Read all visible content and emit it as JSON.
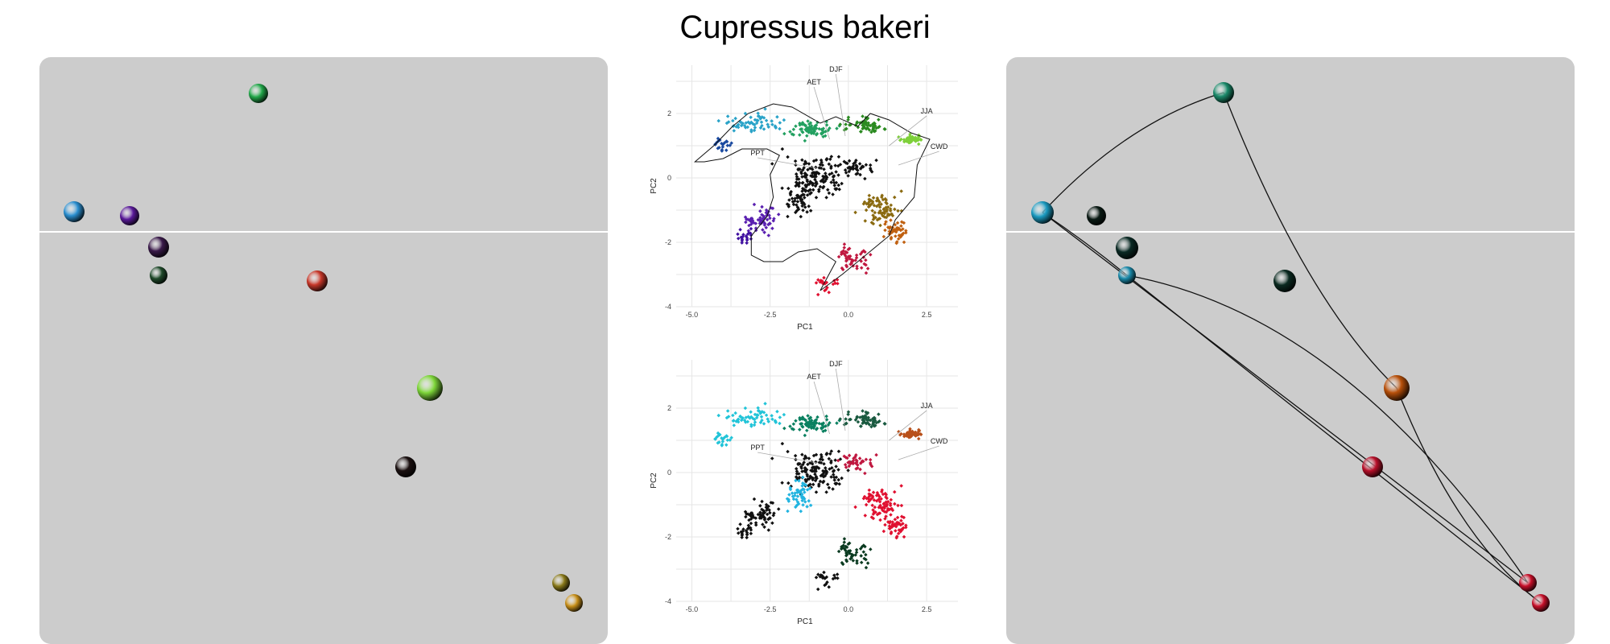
{
  "page": {
    "title": "Cupressus bakeri"
  },
  "chart_data": [
    {
      "type": "scatter",
      "panel": "left",
      "description_points": "cluster map, points colored by site",
      "points": [
        {
          "id": "p1",
          "color": "#22a84a"
        },
        {
          "id": "p2",
          "color": "#2b8fd0"
        },
        {
          "id": "p3",
          "color": "#5a1a9a"
        },
        {
          "id": "p4",
          "color": "#3a1a4a"
        },
        {
          "id": "p5",
          "color": "#1f4a2a"
        },
        {
          "id": "p6",
          "color": "#c8382a"
        },
        {
          "id": "p7",
          "color": "#7ed63a"
        },
        {
          "id": "p8",
          "color": "#1a1010"
        },
        {
          "id": "p9",
          "color": "#8a7a1a"
        },
        {
          "id": "p10",
          "color": "#c8901a"
        }
      ]
    },
    {
      "type": "scatter",
      "panel": "center-top",
      "xlabel": "PC1",
      "ylabel": "PC2",
      "xlim": [
        -5.5,
        3.5
      ],
      "ylim": [
        -4,
        3.5
      ],
      "xticks": [
        "-5.0",
        "-2.5",
        "0.0",
        "2.5"
      ],
      "yticks": [
        "-4",
        "-2",
        "0",
        "2"
      ],
      "grid": true,
      "annotations": [
        "AET",
        "DJF",
        "JJA",
        "CWD",
        "PPT"
      ]
    },
    {
      "type": "scatter",
      "panel": "center-bottom",
      "xlabel": "PC1",
      "ylabel": "PC2",
      "xlim": [
        -5.5,
        3.5
      ],
      "ylim": [
        -4,
        3.5
      ],
      "xticks": [
        "-5.0",
        "-2.5",
        "0.0",
        "2.5"
      ],
      "yticks": [
        "-4",
        "-2",
        "0",
        "2"
      ],
      "grid": true,
      "annotations": [
        "AET",
        "DJF",
        "JJA",
        "CWD",
        "PPT"
      ]
    },
    {
      "type": "scatter",
      "panel": "right",
      "points": [
        {
          "id": "r1",
          "color": "#1a8a6a"
        },
        {
          "id": "r2",
          "color": "#1a9ac0"
        },
        {
          "id": "r3",
          "color": "#0a1a14"
        },
        {
          "id": "r4",
          "color": "#0a2a24"
        },
        {
          "id": "r5",
          "color": "#1a8aaa"
        },
        {
          "id": "r6",
          "color": "#0a2a20"
        },
        {
          "id": "r7",
          "color": "#b8500a"
        },
        {
          "id": "r8",
          "color": "#b8102a"
        },
        {
          "id": "r9",
          "color": "#c8102a"
        },
        {
          "id": "r10",
          "color": "#c8102a"
        }
      ]
    }
  ]
}
